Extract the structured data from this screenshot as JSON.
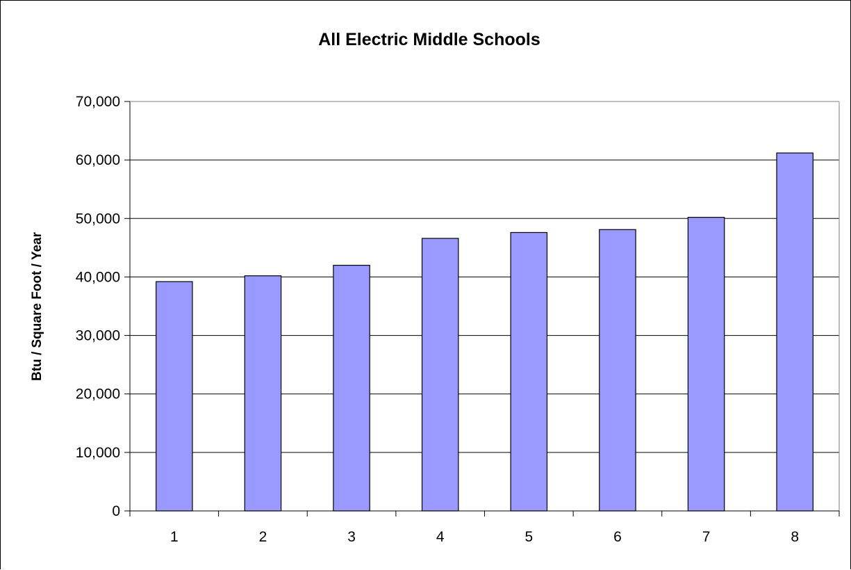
{
  "chart_data": {
    "type": "bar",
    "title": "All Electric Middle Schools",
    "xlabel": "",
    "ylabel": "Btu / Square Foot / Year",
    "categories": [
      "1",
      "2",
      "3",
      "4",
      "5",
      "6",
      "7",
      "8"
    ],
    "values": [
      39200,
      40200,
      42000,
      46600,
      47600,
      48100,
      50200,
      61200
    ],
    "ylim": [
      0,
      70000
    ],
    "y_ticks": [
      0,
      10000,
      20000,
      30000,
      40000,
      50000,
      60000,
      70000
    ],
    "y_tick_labels": [
      "0",
      "10,000",
      "20,000",
      "30,000",
      "40,000",
      "50,000",
      "60,000",
      "70,000"
    ],
    "grid": "horizontal",
    "legend": "none",
    "colors": {
      "bar_fill": "#9999ff",
      "bar_stroke": "#000000",
      "grid": "#000000",
      "background": "#ffffff"
    }
  }
}
